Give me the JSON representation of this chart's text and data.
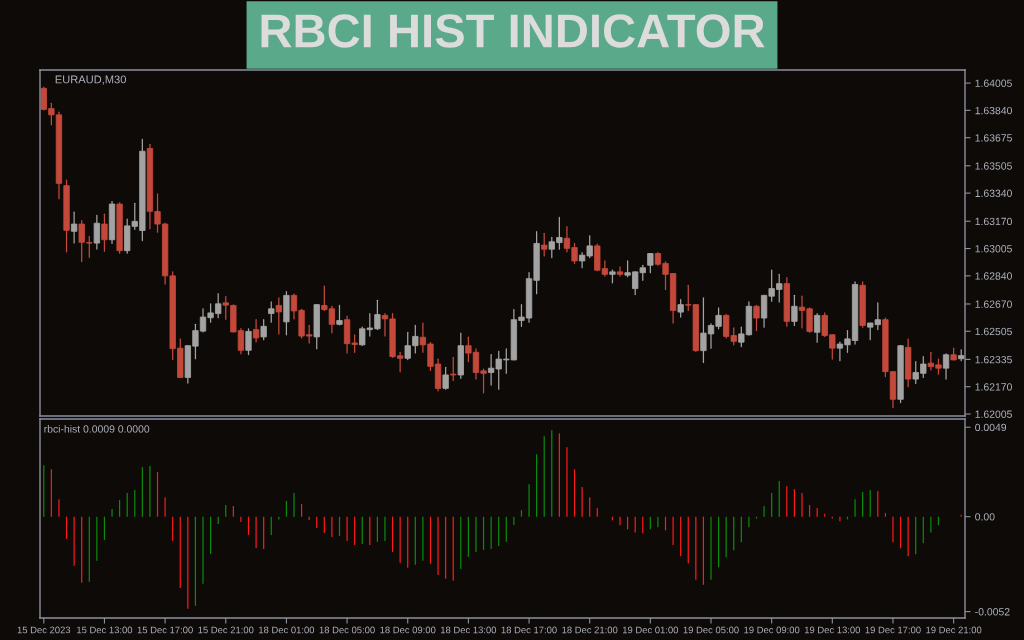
{
  "chart_data": [
    {
      "type": "candlestick",
      "title": "RBCI HIST INDICATOR",
      "subtitle": "EURAUD,M30",
      "categories": [
        null,
        null,
        null,
        null,
        null,
        null,
        null,
        null,
        null,
        null,
        null,
        null,
        null,
        null,
        null,
        null,
        null,
        null,
        null,
        null,
        null,
        null,
        null,
        null,
        null,
        null,
        null,
        null,
        null,
        null,
        null,
        null,
        null,
        null,
        null,
        null,
        null,
        null,
        null,
        null,
        null,
        null,
        null,
        null,
        null,
        null,
        null,
        null,
        null,
        null,
        null,
        null,
        null,
        null,
        null,
        null,
        null,
        null,
        null,
        null,
        null,
        null,
        null,
        null,
        null,
        null,
        null,
        null,
        null,
        null,
        null,
        null,
        null,
        null,
        null,
        null,
        null,
        null,
        null,
        null,
        null,
        null,
        null,
        null,
        null,
        null,
        null,
        null,
        null,
        null,
        null,
        null,
        null,
        null,
        null,
        null,
        null,
        null,
        null,
        null,
        null,
        null,
        null,
        null,
        null,
        null,
        null,
        null,
        null,
        null,
        null,
        null,
        null,
        null,
        null,
        null,
        null,
        null,
        null,
        null,
        null,
        null
      ],
      "ohlc": [
        [
          1.63973,
          1.63981,
          1.63843,
          1.63846
        ],
        [
          1.63851,
          1.63883,
          1.63753,
          1.63813
        ],
        [
          1.63813,
          1.63829,
          1.63306,
          1.63399
        ],
        [
          1.63385,
          1.63419,
          1.62985,
          1.63115
        ],
        [
          1.63109,
          1.63225,
          1.63039,
          1.63153
        ],
        [
          1.63153,
          1.63174,
          1.62926,
          1.63043
        ],
        [
          1.63041,
          1.63078,
          1.62952,
          1.63038
        ],
        [
          1.63038,
          1.63205,
          1.63002,
          1.63158
        ],
        [
          1.63153,
          1.63213,
          1.62989,
          1.63058
        ],
        [
          1.63058,
          1.63289,
          1.63036,
          1.63274
        ],
        [
          1.63274,
          1.63281,
          1.62977,
          1.62992
        ],
        [
          1.62992,
          1.63183,
          1.62977,
          1.63142
        ],
        [
          1.63139,
          1.63278,
          1.63121,
          1.63169
        ],
        [
          1.63114,
          1.63664,
          1.63053,
          1.63593
        ],
        [
          1.6361,
          1.63635,
          1.63124,
          1.6323
        ],
        [
          1.63229,
          1.63335,
          1.63104,
          1.63153
        ],
        [
          1.63153,
          1.63158,
          1.6279,
          1.6284
        ],
        [
          1.6284,
          1.62864,
          1.62334,
          1.624
        ],
        [
          1.62403,
          1.62459,
          1.62226,
          1.62226
        ],
        [
          1.62226,
          1.62418,
          1.62192,
          1.62418
        ],
        [
          1.62415,
          1.62547,
          1.62339,
          1.62509
        ],
        [
          1.62506,
          1.62641,
          1.62501,
          1.62591
        ],
        [
          1.62587,
          1.62671,
          1.6256,
          1.62616
        ],
        [
          1.62612,
          1.62732,
          1.62587,
          1.62671
        ],
        [
          1.62677,
          1.62715,
          1.62577,
          1.62663
        ],
        [
          1.62661,
          1.62665,
          1.62501,
          1.62501
        ],
        [
          1.62509,
          1.62521,
          1.62369,
          1.6239
        ],
        [
          1.6239,
          1.6252,
          1.62364,
          1.62504
        ],
        [
          1.62515,
          1.62575,
          1.6244,
          1.62465
        ],
        [
          1.62471,
          1.62575,
          1.62454,
          1.62535
        ],
        [
          1.62612,
          1.62682,
          1.6256,
          1.62641
        ],
        [
          1.62661,
          1.62707,
          1.62489,
          1.62622
        ],
        [
          1.62562,
          1.62744,
          1.62484,
          1.62722
        ],
        [
          1.62722,
          1.62729,
          1.6258,
          1.62628
        ],
        [
          1.62631,
          1.62638,
          1.62465,
          1.62476
        ],
        [
          1.62484,
          1.6254,
          1.62434,
          1.62476
        ],
        [
          1.62471,
          1.62666,
          1.624,
          1.62666
        ],
        [
          1.62661,
          1.62778,
          1.62631,
          1.62636
        ],
        [
          1.62641,
          1.62656,
          1.62496,
          1.62547
        ],
        [
          1.62547,
          1.62661,
          1.62543,
          1.6257
        ],
        [
          1.62575,
          1.62597,
          1.62374,
          1.6243
        ],
        [
          1.62434,
          1.62484,
          1.62378,
          1.62425
        ],
        [
          1.62423,
          1.6253,
          1.6242,
          1.6252
        ],
        [
          1.62515,
          1.62611,
          1.62476,
          1.62525
        ],
        [
          1.6252,
          1.62692,
          1.62516,
          1.62606
        ],
        [
          1.62601,
          1.62611,
          1.62476,
          1.6258
        ],
        [
          1.6258,
          1.62611,
          1.62347,
          1.62352
        ],
        [
          1.62357,
          1.62378,
          1.6226,
          1.62342
        ],
        [
          1.62342,
          1.62499,
          1.62334,
          1.62418
        ],
        [
          1.62418,
          1.6254,
          1.62374,
          1.62474
        ],
        [
          1.62469,
          1.62555,
          1.62378,
          1.62423
        ],
        [
          1.62428,
          1.62437,
          1.62268,
          1.62293
        ],
        [
          1.62307,
          1.62336,
          1.62145,
          1.6216
        ],
        [
          1.6216,
          1.62287,
          1.62155,
          1.62241
        ],
        [
          1.62246,
          1.62347,
          1.62207,
          1.62241
        ],
        [
          1.62241,
          1.62494,
          1.62221,
          1.62418
        ],
        [
          1.62418,
          1.62469,
          1.62322,
          1.62373
        ],
        [
          1.62378,
          1.62398,
          1.62216,
          1.62256
        ],
        [
          1.62266,
          1.62277,
          1.62133,
          1.62251
        ],
        [
          1.62256,
          1.62364,
          1.6218,
          1.62282
        ],
        [
          1.62277,
          1.62383,
          1.62155,
          1.62337
        ],
        [
          1.62332,
          1.62398,
          1.62251,
          1.62337
        ],
        [
          1.62332,
          1.62636,
          1.62332,
          1.62575
        ],
        [
          1.6257,
          1.62666,
          1.62535,
          1.62591
        ],
        [
          1.62585,
          1.62859,
          1.6256,
          1.62823
        ],
        [
          1.62813,
          1.63107,
          1.62732,
          1.63036
        ],
        [
          1.63026,
          1.63097,
          1.6296,
          1.63001
        ],
        [
          1.63001,
          1.63072,
          1.6295,
          1.63046
        ],
        [
          1.63041,
          1.63193,
          1.63001,
          1.63072
        ],
        [
          1.63067,
          1.63137,
          1.62985,
          1.63006
        ],
        [
          1.63011,
          1.63036,
          1.62915,
          1.6293
        ],
        [
          1.6293,
          1.6298,
          1.62889,
          1.62965
        ],
        [
          1.6296,
          1.63082,
          1.6295,
          1.63021
        ],
        [
          1.63021,
          1.63031,
          1.62871,
          1.62874
        ],
        [
          1.62884,
          1.6293,
          1.62839,
          1.62849
        ],
        [
          1.62849,
          1.62874,
          1.62798,
          1.62864
        ],
        [
          1.62864,
          1.62894,
          1.62839,
          1.62849
        ],
        [
          1.62844,
          1.6293,
          1.62834,
          1.62859
        ],
        [
          1.62763,
          1.62864,
          1.62727,
          1.62864
        ],
        [
          1.62859,
          1.62904,
          1.62813,
          1.62889
        ],
        [
          1.62904,
          1.62975,
          1.62859,
          1.62975
        ],
        [
          1.62975,
          1.6298,
          1.62904,
          1.6291
        ],
        [
          1.62915,
          1.62925,
          1.62758,
          1.62849
        ],
        [
          1.62854,
          1.62854,
          1.62555,
          1.62631
        ],
        [
          1.62621,
          1.62697,
          1.62591,
          1.62666
        ],
        [
          1.62666,
          1.62783,
          1.62631,
          1.62663
        ],
        [
          1.62666,
          1.62666,
          1.62383,
          1.62388
        ],
        [
          1.62388,
          1.62707,
          1.62317,
          1.62494
        ],
        [
          1.62489,
          1.6255,
          1.62403,
          1.6254
        ],
        [
          1.62535,
          1.62646,
          1.6252,
          1.62601
        ],
        [
          1.62601,
          1.62606,
          1.62464,
          1.62474
        ],
        [
          1.62479,
          1.62525,
          1.62423,
          1.62444
        ],
        [
          1.62439,
          1.6253,
          1.62413,
          1.62489
        ],
        [
          1.62484,
          1.62682,
          1.62482,
          1.62656
        ],
        [
          1.62656,
          1.62661,
          1.62509,
          1.62585
        ],
        [
          1.62585,
          1.62722,
          1.6253,
          1.62722
        ],
        [
          1.62717,
          1.62874,
          1.62687,
          1.62763
        ],
        [
          1.62758,
          1.62849,
          1.62682,
          1.62793
        ],
        [
          1.62793,
          1.62829,
          1.62535,
          1.62565
        ],
        [
          1.62565,
          1.62722,
          1.6254,
          1.62656
        ],
        [
          1.62651,
          1.62717,
          1.62525,
          1.62631
        ],
        [
          1.62641,
          1.62646,
          1.62499,
          1.62504
        ],
        [
          1.62499,
          1.62611,
          1.62439,
          1.62601
        ],
        [
          1.62601,
          1.62616,
          1.62474,
          1.62479
        ],
        [
          1.62484,
          1.62484,
          1.62337,
          1.62403
        ],
        [
          1.62403,
          1.62439,
          1.62327,
          1.62428
        ],
        [
          1.62423,
          1.62509,
          1.62378,
          1.62459
        ],
        [
          1.62449,
          1.62803,
          1.62428,
          1.62788
        ],
        [
          1.62783,
          1.62803,
          1.6253,
          1.6254
        ],
        [
          1.6253,
          1.62555,
          1.62454,
          1.62555
        ],
        [
          1.62545,
          1.62677,
          1.62515,
          1.62575
        ],
        [
          1.62575,
          1.62585,
          1.62231,
          1.62261
        ],
        [
          1.62261,
          1.62261,
          1.62044,
          1.62094
        ],
        [
          1.62094,
          1.62418,
          1.62074,
          1.62418
        ],
        [
          1.62408,
          1.62459,
          1.6217,
          1.62216
        ],
        [
          1.62216,
          1.62322,
          1.6219,
          1.62256
        ],
        [
          1.62251,
          1.62352,
          1.62226,
          1.62307
        ],
        [
          1.62312,
          1.62378,
          1.62271,
          1.62292
        ],
        [
          1.62302,
          1.62337,
          1.62246,
          1.62282
        ],
        [
          1.62282,
          1.62368,
          1.62216,
          1.62363
        ],
        [
          1.62363,
          1.62403,
          1.62332,
          1.62332
        ],
        [
          1.62339,
          1.62393,
          1.62327,
          1.62358
        ]
      ],
      "colors": [
        "#c4493b",
        "#c4493b",
        "#c4493b",
        "#c4493b",
        "#a3a3a3",
        "#c4493b",
        "#c4493b",
        "#a3a3a3",
        "#c4493b",
        "#a3a3a3",
        "#c4493b",
        "#a3a3a3",
        "#a3a3a3",
        "#a3a3a3",
        "#c4493b",
        "#c4493b",
        "#c4493b",
        "#c4493b",
        "#c4493b",
        "#a3a3a3",
        "#a3a3a3",
        "#a3a3a3",
        "#a3a3a3",
        "#a3a3a3",
        "#c4493b",
        "#c4493b",
        "#c4493b",
        "#a3a3a3",
        "#c4493b",
        "#a3a3a3",
        "#a3a3a3",
        "#c4493b",
        "#a3a3a3",
        "#c4493b",
        "#c4493b",
        "#c4493b",
        "#a3a3a3",
        "#c4493b",
        "#c4493b",
        "#a3a3a3",
        "#c4493b",
        "#c4493b",
        "#a3a3a3",
        "#a3a3a3",
        "#a3a3a3",
        "#c4493b",
        "#c4493b",
        "#c4493b",
        "#a3a3a3",
        "#a3a3a3",
        "#c4493b",
        "#c4493b",
        "#c4493b",
        "#a3a3a3",
        "#c4493b",
        "#a3a3a3",
        "#c4493b",
        "#c4493b",
        "#c4493b",
        "#a3a3a3",
        "#a3a3a3",
        "#a3a3a3",
        "#a3a3a3",
        "#a3a3a3",
        "#a3a3a3",
        "#a3a3a3",
        "#c4493b",
        "#a3a3a3",
        "#a3a3a3",
        "#c4493b",
        "#c4493b",
        "#a3a3a3",
        "#a3a3a3",
        "#c4493b",
        "#c4493b",
        "#a3a3a3",
        "#c4493b",
        "#a3a3a3",
        "#a3a3a3",
        "#a3a3a3",
        "#a3a3a3",
        "#c4493b",
        "#c4493b",
        "#c4493b",
        "#a3a3a3",
        "#c4493b",
        "#c4493b",
        "#a3a3a3",
        "#a3a3a3",
        "#a3a3a3",
        "#c4493b",
        "#c4493b",
        "#a3a3a3",
        "#a3a3a3",
        "#c4493b",
        "#a3a3a3",
        "#a3a3a3",
        "#a3a3a3",
        "#c4493b",
        "#a3a3a3",
        "#c4493b",
        "#c4493b",
        "#a3a3a3",
        "#c4493b",
        "#c4493b",
        "#a3a3a3",
        "#a3a3a3",
        "#a3a3a3",
        "#c4493b",
        "#a3a3a3",
        "#a3a3a3",
        "#c4493b",
        "#c4493b",
        "#a3a3a3",
        "#c4493b",
        "#a3a3a3",
        "#a3a3a3",
        "#c4493b",
        "#c4493b",
        "#a3a3a3",
        "#c4493b",
        "#a3a3a3"
      ],
      "ylim": [
        1.61993,
        1.64084
      ],
      "yticks": [
        {
          "value": 1.64005,
          "label": "1.64005"
        },
        {
          "value": 1.6384,
          "label": "1.63840"
        },
        {
          "value": 1.63675,
          "label": "1.63675"
        },
        {
          "value": 1.63505,
          "label": "1.63505"
        },
        {
          "value": 1.6334,
          "label": "1.63340"
        },
        {
          "value": 1.6317,
          "label": "1.63170"
        },
        {
          "value": 1.63005,
          "label": "1.63005"
        },
        {
          "value": 1.6284,
          "label": "1.62840"
        },
        {
          "value": 1.6267,
          "label": "1.62670"
        },
        {
          "value": 1.62505,
          "label": "1.62505"
        },
        {
          "value": 1.62335,
          "label": "1.62335"
        },
        {
          "value": 1.6217,
          "label": "1.62170"
        },
        {
          "value": 1.62005,
          "label": "1.62005"
        }
      ]
    },
    {
      "type": "bar",
      "title": "rbci-hist 0.0009 0.0000",
      "categories": [
        "15 Dec 2023",
        null,
        null,
        null,
        null,
        null,
        null,
        null,
        "15 Dec 13:00",
        null,
        null,
        null,
        null,
        null,
        null,
        null,
        "15 Dec 17:00",
        null,
        null,
        null,
        null,
        null,
        null,
        null,
        "15 Dec 21:00",
        null,
        null,
        null,
        null,
        null,
        null,
        null,
        "18 Dec 01:00",
        null,
        null,
        null,
        null,
        null,
        null,
        null,
        "18 Dec 05:00",
        null,
        null,
        null,
        null,
        null,
        null,
        null,
        "18 Dec 09:00",
        null,
        null,
        null,
        null,
        null,
        null,
        null,
        "18 Dec 13:00",
        null,
        null,
        null,
        null,
        null,
        null,
        null,
        "18 Dec 17:00",
        null,
        null,
        null,
        null,
        null,
        null,
        null,
        "18 Dec 21:00",
        null,
        null,
        null,
        null,
        null,
        null,
        null,
        "19 Dec 01:00",
        null,
        null,
        null,
        null,
        null,
        null,
        null,
        "19 Dec 05:00",
        null,
        null,
        null,
        null,
        null,
        null,
        null,
        "19 Dec 09:00",
        null,
        null,
        null,
        null,
        null,
        null,
        null,
        "19 Dec 13:00",
        null,
        null,
        null,
        null,
        null,
        null,
        null,
        "19 Dec 17:00",
        null,
        null,
        null,
        null,
        null,
        null,
        null,
        "19 Dec 21:00",
        null
      ],
      "values": [
        0.00282,
        0.0026,
        0.00096,
        -0.00122,
        -0.00269,
        -0.00362,
        -0.00357,
        -0.00242,
        -0.00127,
        0.00042,
        0.00091,
        0.00129,
        0.00146,
        0.00271,
        0.00277,
        0.00244,
        0.00107,
        -0.00133,
        -0.0039,
        -0.00504,
        -0.00488,
        -0.00368,
        -0.00204,
        -0.0004,
        0.00064,
        0.00058,
        -0.00029,
        -0.001,
        -0.00171,
        -0.00177,
        -0.001,
        -0.00015,
        0.00086,
        0.00129,
        0.00069,
        -0.00018,
        -0.00062,
        -0.00089,
        -0.00111,
        -0.00106,
        -0.00133,
        -0.00155,
        -0.00149,
        -0.00155,
        -0.00138,
        -0.00133,
        -0.00193,
        -0.00253,
        -0.0028,
        -0.00264,
        -0.00242,
        -0.00258,
        -0.00319,
        -0.0034,
        -0.00351,
        -0.00286,
        -0.0022,
        -0.00193,
        -0.00182,
        -0.00177,
        -0.0016,
        -0.00138,
        -0.00046,
        0.00036,
        0.00178,
        0.00342,
        0.0044,
        0.00473,
        0.00457,
        0.0038,
        0.0026,
        0.00162,
        0.00107,
        0.00047,
        0,
        -0.0002,
        -0.00047,
        -0.00069,
        -0.00086,
        -0.00091,
        -0.00069,
        -0.00058,
        -0.00075,
        -0.00155,
        -0.00217,
        -0.00255,
        -0.00346,
        -0.00373,
        -0.00346,
        -0.00277,
        -0.00222,
        -0.00184,
        -0.0014,
        -0.00058,
        -0.0001,
        0.00058,
        0.00129,
        0.00195,
        0.00167,
        0.00151,
        0.00129,
        0.00064,
        0.00047,
        0.00016,
        -0.0001,
        -0.00025,
        -0.00015,
        0.00096,
        0.00135,
        0.00146,
        0.0014,
        0.0002,
        -0.0014,
        -0.00173,
        -0.00217,
        -0.00206,
        -0.00146,
        -0.00086,
        -0.00047,
        0,
        0,
        0.0001
      ],
      "colors": [
        "#0c8c0c",
        "#ff1a1a",
        "#ff1a1a",
        "#ff1a1a",
        "#ff1a1a",
        "#ff1a1a",
        "#0c8c0c",
        "#0c8c0c",
        "#0c8c0c",
        "#0c8c0c",
        "#0c8c0c",
        "#0c8c0c",
        "#0c8c0c",
        "#0c8c0c",
        "#0c8c0c",
        "#ff1a1a",
        "#ff1a1a",
        "#ff1a1a",
        "#ff1a1a",
        "#ff1a1a",
        "#0c8c0c",
        "#0c8c0c",
        "#0c8c0c",
        "#0c8c0c",
        "#0c8c0c",
        "#ff1a1a",
        "#ff1a1a",
        "#ff1a1a",
        "#ff1a1a",
        "#ff1a1a",
        "#0c8c0c",
        "#0c8c0c",
        "#0c8c0c",
        "#0c8c0c",
        "#ff1a1a",
        "#ff1a1a",
        "#ff1a1a",
        "#ff1a1a",
        "#ff1a1a",
        "#0c8c0c",
        "#ff1a1a",
        "#ff1a1a",
        "#0c8c0c",
        "#ff1a1a",
        "#0c8c0c",
        "#0c8c0c",
        "#ff1a1a",
        "#ff1a1a",
        "#ff1a1a",
        "#0c8c0c",
        "#0c8c0c",
        "#ff1a1a",
        "#ff1a1a",
        "#ff1a1a",
        "#ff1a1a",
        "#0c8c0c",
        "#0c8c0c",
        "#0c8c0c",
        "#0c8c0c",
        "#0c8c0c",
        "#0c8c0c",
        "#0c8c0c",
        "#0c8c0c",
        "#0c8c0c",
        "#0c8c0c",
        "#0c8c0c",
        "#0c8c0c",
        "#0c8c0c",
        "#ff1a1a",
        "#ff1a1a",
        "#ff1a1a",
        "#ff1a1a",
        "#ff1a1a",
        "#ff1a1a",
        "#ff1a1a",
        "#ff1a1a",
        "#ff1a1a",
        "#ff1a1a",
        "#ff1a1a",
        "#ff1a1a",
        "#0c8c0c",
        "#0c8c0c",
        "#ff1a1a",
        "#ff1a1a",
        "#ff1a1a",
        "#ff1a1a",
        "#ff1a1a",
        "#ff1a1a",
        "#0c8c0c",
        "#0c8c0c",
        "#0c8c0c",
        "#0c8c0c",
        "#0c8c0c",
        "#0c8c0c",
        "#0c8c0c",
        "#0c8c0c",
        "#0c8c0c",
        "#0c8c0c",
        "#ff1a1a",
        "#ff1a1a",
        "#ff1a1a",
        "#ff1a1a",
        "#ff1a1a",
        "#ff1a1a",
        "#ff1a1a",
        "#ff1a1a",
        "#0c8c0c",
        "#0c8c0c",
        "#0c8c0c",
        "#0c8c0c",
        "#ff1a1a",
        "#ff1a1a",
        "#ff1a1a",
        "#ff1a1a",
        "#ff1a1a",
        "#0c8c0c",
        "#0c8c0c",
        "#0c8c0c",
        "#0c8c0c",
        "#0c8c0c",
        "#ff1a1a",
        "#ff1a1a"
      ],
      "ylim": [
        -0.00555,
        0.00535
      ],
      "yticks": [
        {
          "value": 0.0049,
          "label": "0.0049"
        },
        {
          "value": 0,
          "label": "0.00"
        },
        {
          "value": -0.0052,
          "label": "-0.0052"
        }
      ]
    }
  ]
}
